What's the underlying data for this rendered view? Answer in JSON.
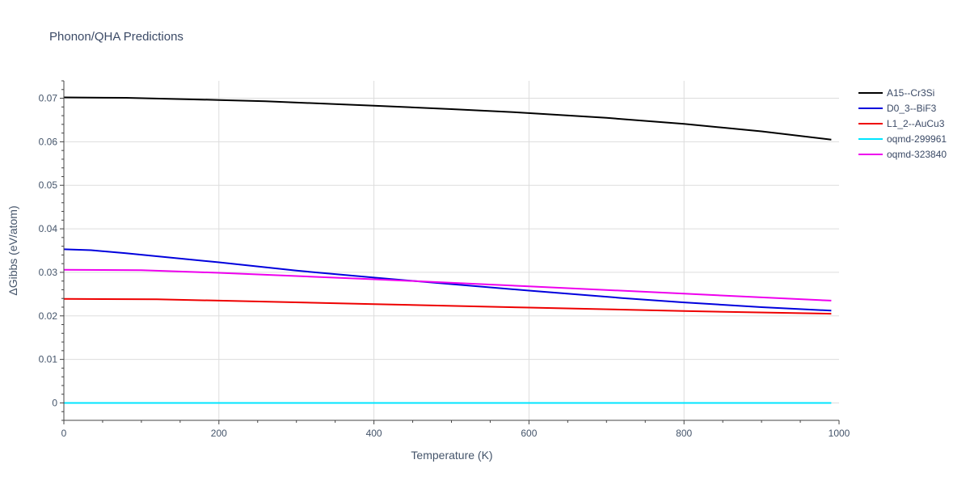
{
  "chart_data": {
    "type": "line",
    "title": "Phonon/QHA Predictions",
    "xlabel": "Temperature (K)",
    "ylabel": "ΔGibbs (eV/atom)",
    "xlim": [
      0,
      1000
    ],
    "ylim": [
      -0.004,
      0.074
    ],
    "xticks": [
      0,
      200,
      400,
      600,
      800,
      1000
    ],
    "xtick_labels": [
      "0",
      "200",
      "400",
      "600",
      "800",
      "1000"
    ],
    "yticks": [
      0,
      0.01,
      0.02,
      0.03,
      0.04,
      0.05,
      0.06,
      0.07
    ],
    "ytick_labels": [
      "0",
      "0.01",
      "0.02",
      "0.03",
      "0.04",
      "0.05",
      "0.06",
      "0.07"
    ],
    "grid": true,
    "legend_position": "top-right",
    "series": [
      {
        "name": "A15--Cr3Si",
        "color": "#000000",
        "x": [
          0,
          80,
          200,
          260,
          400,
          500,
          580,
          700,
          800,
          900,
          990
        ],
        "y": [
          0.0702,
          0.0701,
          0.0696,
          0.0693,
          0.0683,
          0.0675,
          0.0668,
          0.0655,
          0.0641,
          0.0624,
          0.0605
        ]
      },
      {
        "name": "D0_3--BiF3",
        "color": "#0000dd",
        "x": [
          0,
          35,
          80,
          200,
          300,
          400,
          500,
          600,
          720,
          800,
          900,
          990
        ],
        "y": [
          0.0353,
          0.0351,
          0.0344,
          0.0323,
          0.0304,
          0.0288,
          0.0273,
          0.0258,
          0.0241,
          0.0231,
          0.022,
          0.0212
        ]
      },
      {
        "name": "L1_2--AuCu3",
        "color": "#ee0000",
        "x": [
          0,
          120,
          200,
          400,
          600,
          800,
          990
        ],
        "y": [
          0.0239,
          0.0238,
          0.0235,
          0.0227,
          0.0219,
          0.0211,
          0.0205
        ]
      },
      {
        "name": "oqmd-299961",
        "color": "#00e5ff",
        "x": [
          0,
          990
        ],
        "y": [
          0.0,
          0.0
        ]
      },
      {
        "name": "oqmd-323840",
        "color": "#ee00ee",
        "x": [
          0,
          100,
          200,
          400,
          600,
          800,
          990
        ],
        "y": [
          0.0306,
          0.0305,
          0.0299,
          0.0284,
          0.0268,
          0.0251,
          0.0235
        ]
      }
    ]
  }
}
